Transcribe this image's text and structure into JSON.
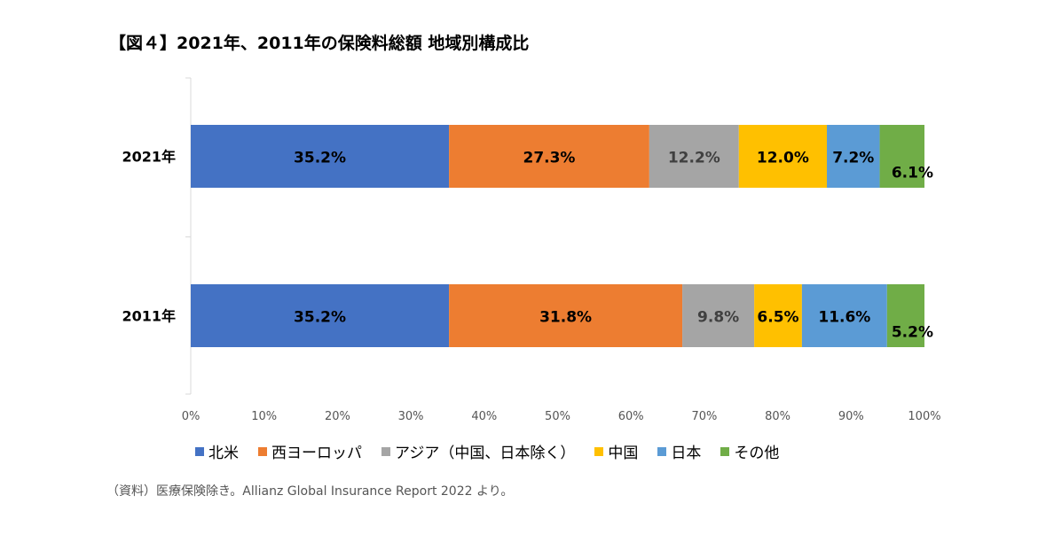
{
  "chart_data": {
    "type": "bar",
    "orientation": "horizontal",
    "stacked": "percent",
    "title": "【図４】2021年、2011年の保険料総額 地域別構成比",
    "categories": [
      "2021年",
      "2011年"
    ],
    "series": [
      {
        "name": "北米",
        "color": "#4472C4",
        "label_color": "#000000",
        "values": [
          35.2,
          35.2
        ]
      },
      {
        "name": "西ヨーロッパ",
        "color": "#ED7D31",
        "label_color": "#000000",
        "values": [
          27.3,
          31.8
        ]
      },
      {
        "name": "アジア（中国、日本除く）",
        "color": "#A5A5A5",
        "label_color": "#404040",
        "values": [
          12.2,
          9.8
        ]
      },
      {
        "name": "中国",
        "color": "#FFC000",
        "label_color": "#000000",
        "values": [
          12.0,
          6.5
        ]
      },
      {
        "name": "日本",
        "color": "#5B9BD5",
        "label_color": "#000000",
        "values": [
          7.2,
          11.6
        ]
      },
      {
        "name": "その他",
        "color": "#70AD47",
        "label_color": "#000000",
        "values": [
          6.1,
          5.2
        ]
      }
    ],
    "data_labels": [
      [
        "35.2%",
        "27.3%",
        "12.2%",
        "12.0%",
        "7.2%",
        "6.1%"
      ],
      [
        "35.2%",
        "31.8%",
        "9.8%",
        "6.5%",
        "11.6%",
        "5.2%"
      ]
    ],
    "xlim": [
      0,
      100
    ],
    "x_ticks": [
      "0%",
      "10%",
      "20%",
      "30%",
      "40%",
      "50%",
      "60%",
      "70%",
      "80%",
      "90%",
      "100%"
    ],
    "grid": false,
    "legend": "bottom"
  },
  "source_note": "（資料）医療保険除き。Allianz Global Insurance Report 2022 より。"
}
